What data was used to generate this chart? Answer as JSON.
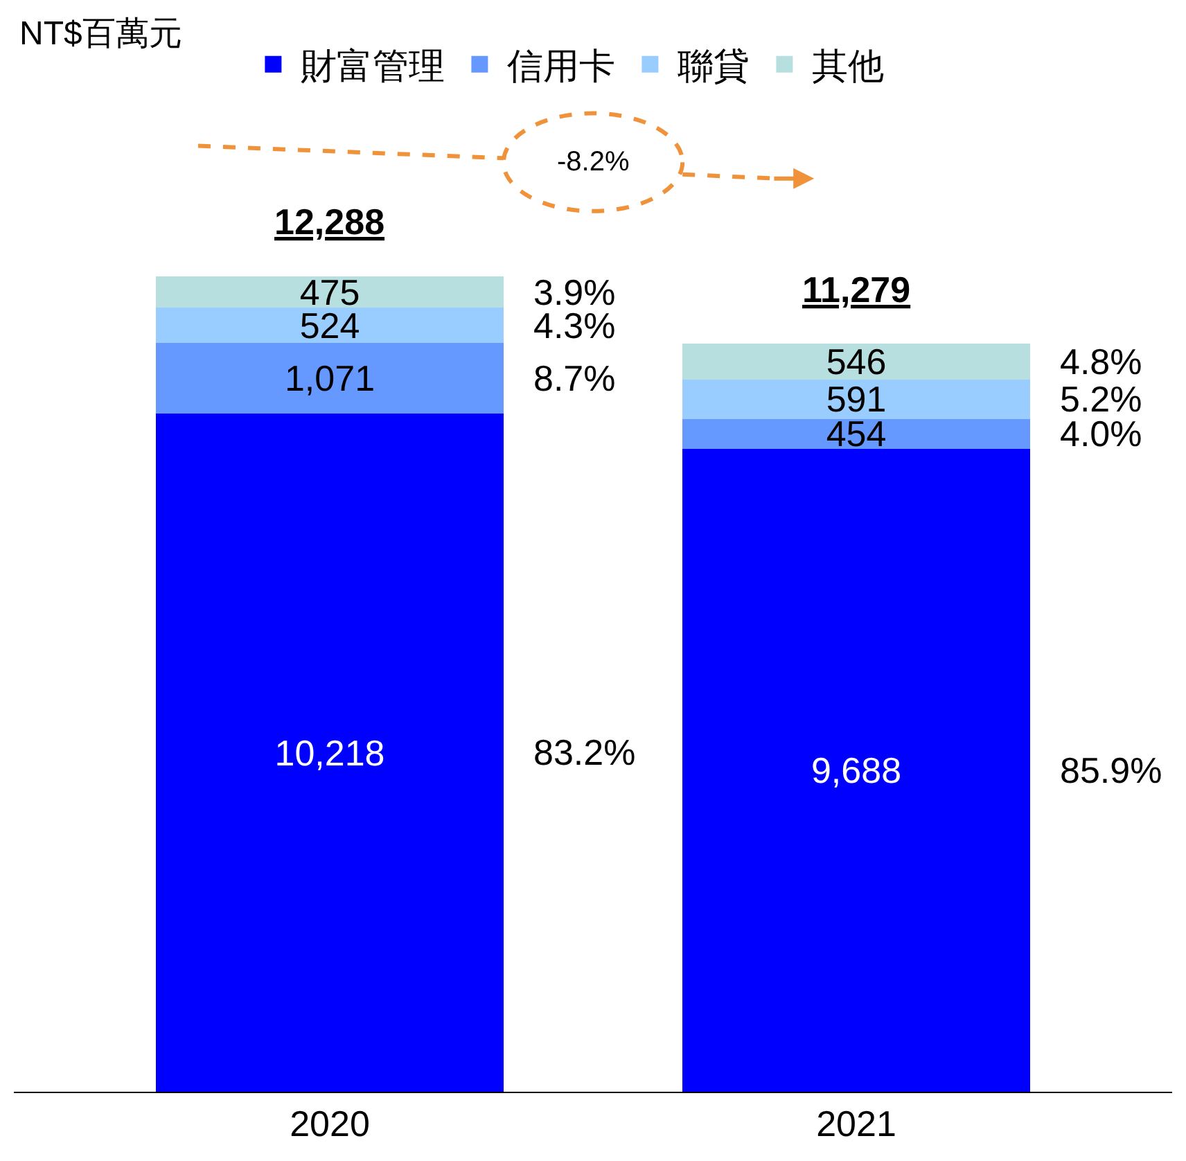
{
  "chart_data": {
    "type": "bar",
    "stacked": true,
    "categories": [
      "2020",
      "2021"
    ],
    "series": [
      {
        "name": "財富管理",
        "color": "#0000ff",
        "values": [
          10218,
          9688
        ],
        "value_labels": [
          "10,218",
          "9,688"
        ]
      },
      {
        "name": "信用卡",
        "color": "#6699ff",
        "values": [
          1071,
          454
        ],
        "value_labels": [
          "1,071",
          "454"
        ]
      },
      {
        "name": "聯貸",
        "color": "#99ccff",
        "values": [
          524,
          591
        ],
        "value_labels": [
          "524",
          "591"
        ]
      },
      {
        "name": "其他",
        "color": "#b7dfe0",
        "values": [
          475,
          546
        ],
        "value_labels": [
          "475",
          "546"
        ]
      }
    ],
    "totals": [
      "12,288",
      "11,279"
    ],
    "legend": "top",
    "annotations": [
      "NT$百萬元",
      "83.2%",
      "8.7%",
      "4.3%",
      "3.9%",
      "85.9%",
      "4.0%",
      "5.2%",
      "4.8%",
      "-8.2%"
    ]
  }
}
